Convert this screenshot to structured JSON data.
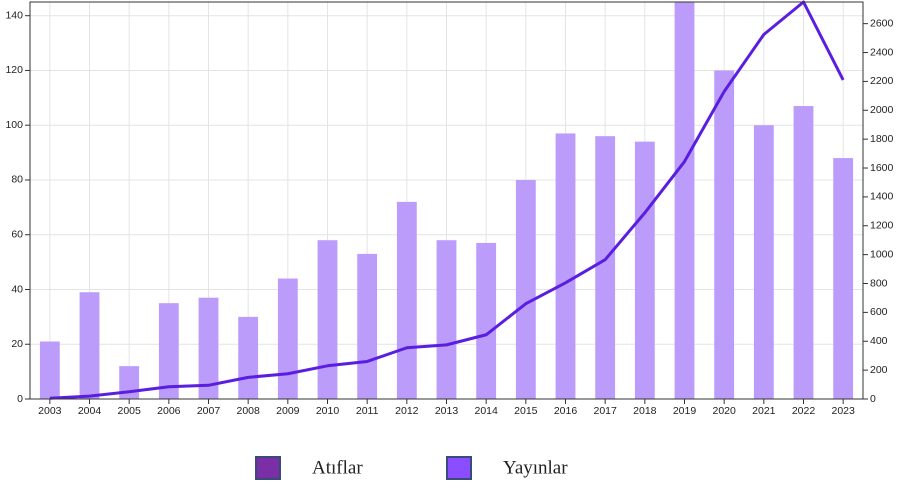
{
  "chart_data": {
    "type": "bar-line",
    "categories": [
      "2003",
      "2004",
      "2005",
      "2006",
      "2007",
      "2008",
      "2009",
      "2010",
      "2011",
      "2012",
      "2013",
      "2014",
      "2015",
      "2016",
      "2017",
      "2018",
      "2019",
      "2020",
      "2021",
      "2022",
      "2023"
    ],
    "series": [
      {
        "name": "Atıflar",
        "type": "line",
        "axis": "y2",
        "color": "#5a1ee0",
        "swatch": "#7a2fa6",
        "values": [
          5,
          20,
          50,
          85,
          95,
          150,
          175,
          230,
          260,
          355,
          375,
          445,
          660,
          805,
          965,
          1290,
          1645,
          2130,
          2525,
          2750,
          2210
        ]
      },
      {
        "name": "Yayınlar",
        "type": "bar",
        "axis": "y",
        "color": "#bb9cfb",
        "swatch": "#8a4dff",
        "values": [
          21,
          39,
          12,
          35,
          37,
          30,
          44,
          58,
          53,
          72,
          58,
          57,
          80,
          97,
          96,
          94,
          145,
          120,
          100,
          107,
          88
        ]
      }
    ],
    "ylim": [
      0,
      145
    ],
    "yticks": [
      0,
      20,
      40,
      60,
      80,
      100,
      120,
      140
    ],
    "y2lim": [
      0,
      2750
    ],
    "y2ticks": [
      0,
      200,
      400,
      600,
      800,
      1000,
      1200,
      1400,
      1600,
      1800,
      2000,
      2200,
      2400,
      2600
    ],
    "grid": true
  }
}
